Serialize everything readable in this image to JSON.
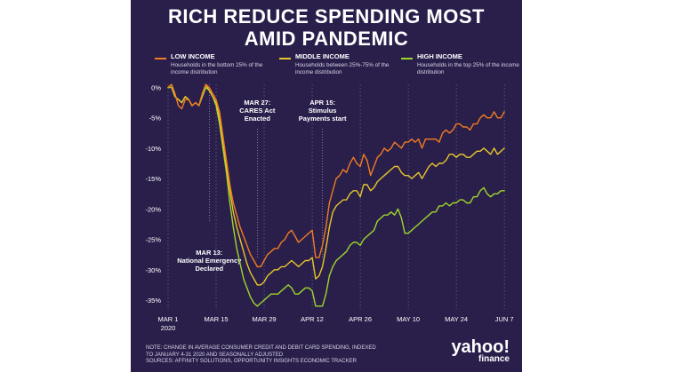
{
  "title_line1": "RICH REDUCE SPENDING MOST",
  "title_line2": "AMID PANDEMIC",
  "legend": [
    {
      "label": "LOW INCOME",
      "desc": "Households in the bottom 25% of the income distribution",
      "color": "#f07b22"
    },
    {
      "label": "MIDDLE INCOME",
      "desc": "Households between 25%-75% of the income distribution",
      "color": "#e6c62a"
    },
    {
      "label": "HIGH INCOME",
      "desc": "Households in the top 25% of the income distribution",
      "color": "#9ed62a"
    }
  ],
  "footnote": {
    "line1": "NOTE: CHANGE IN AVERAGE CONSUMER CREDIT AND DEBIT CARD SPENDING, INDEXED",
    "line2": "TO JANUARY 4-31 2020 AND SEASONALLY ADJUSTED",
    "line3": "SOURCES: AFFINITY SOLUTIONS, OPPORTUNITY INSIGHTS ECONOMIC TRACKER"
  },
  "logo": {
    "main": "yahoo!",
    "sub": "finance"
  },
  "chart_data": {
    "type": "line",
    "x_ticks": [
      {
        "day": 0,
        "label": "MAR 1",
        "sublabel": "2020"
      },
      {
        "day": 14,
        "label": "MAR 15"
      },
      {
        "day": 28,
        "label": "MAR 29"
      },
      {
        "day": 42,
        "label": "APR 12"
      },
      {
        "day": 56,
        "label": "APR 26"
      },
      {
        "day": 70,
        "label": "MAY 10"
      },
      {
        "day": 84,
        "label": "MAY 24"
      },
      {
        "day": 98,
        "label": "JUN 7"
      }
    ],
    "y_ticks": [
      0,
      -5,
      -10,
      -15,
      -20,
      -25,
      -30,
      -35
    ],
    "y_tick_labels": [
      "0%",
      "-5%",
      "-10%",
      "-15%",
      "-20%",
      "-25%",
      "-30%",
      "-35%"
    ],
    "ylim": [
      -37,
      1
    ],
    "xlim": [
      0,
      99
    ],
    "grid": "vertical dotted lines at x ticks",
    "annotations": [
      {
        "day": 12,
        "lines": [
          "MAR 13:",
          "National Emergency",
          "Declared"
        ]
      },
      {
        "day": 26,
        "lines": [
          "MAR 27:",
          "CARES Act",
          "Enacted"
        ]
      },
      {
        "day": 45,
        "lines": [
          "APR 15:",
          "Stimulus",
          "Payments start"
        ]
      }
    ],
    "series": [
      {
        "name": "LOW INCOME",
        "color": "#f07b22",
        "values": [
          0,
          0.5,
          -1,
          -3,
          -3.5,
          -2,
          -2,
          -3,
          -2.5,
          -3,
          -1,
          0.5,
          0,
          -1,
          -2,
          -4,
          -8,
          -12,
          -16,
          -19,
          -21,
          -23,
          -24.5,
          -26,
          -27.5,
          -28.5,
          -29.5,
          -29.5,
          -28.5,
          -27.5,
          -27,
          -26.5,
          -26.5,
          -25.5,
          -25,
          -24,
          -23.5,
          -24.5,
          -25.5,
          -25,
          -24.5,
          -24,
          -23.5,
          -28,
          -28,
          -26,
          -23,
          -19,
          -17,
          -15,
          -14.5,
          -13.5,
          -14,
          -12.5,
          -11.5,
          -12.5,
          -13,
          -11,
          -12,
          -14.5,
          -13,
          -11.5,
          -11,
          -10,
          -10.5,
          -10,
          -9,
          -9.5,
          -10,
          -9,
          -9,
          -8.5,
          -9,
          -8.5,
          -10,
          -8.5,
          -8.5,
          -8.5,
          -8.5,
          -9,
          -7.5,
          -7,
          -7.5,
          -7,
          -6,
          -6,
          -6.5,
          -6.5,
          -7,
          -6,
          -6,
          -5,
          -4.5,
          -5,
          -5,
          -4,
          -5,
          -5,
          -4
        ],
        "_unused": null
      },
      {
        "name": "MIDDLE INCOME",
        "color": "#e6c62a",
        "values": [
          0,
          0.5,
          -1.5,
          -2,
          -2.5,
          -1.5,
          -2,
          -3,
          -2.5,
          -3,
          -1,
          0.5,
          -0.5,
          -1.5,
          -2.5,
          -5,
          -9,
          -13,
          -17,
          -20.5,
          -23,
          -25,
          -27,
          -29,
          -30.5,
          -31.5,
          -32.5,
          -32.5,
          -32,
          -31,
          -30.5,
          -30,
          -30,
          -29.5,
          -29.5,
          -29,
          -28.5,
          -29,
          -29.5,
          -29,
          -28.5,
          -28.5,
          -28,
          -31.5,
          -31,
          -29.5,
          -26.5,
          -23,
          -20.5,
          -19.5,
          -19,
          -18.5,
          -18.5,
          -17.5,
          -17,
          -17,
          -18,
          -16,
          -16,
          -17,
          -16.5,
          -15.5,
          -15,
          -14.5,
          -14,
          -13.5,
          -13,
          -13,
          -14,
          -14.5,
          -14.5,
          -15,
          -14.5,
          -14,
          -15,
          -14,
          -13,
          -12.5,
          -13,
          -12.5,
          -12.5,
          -12,
          -11,
          -11,
          -11.5,
          -11,
          -11,
          -11.5,
          -11.5,
          -11,
          -10.5,
          -10.5,
          -10,
          -10.5,
          -11,
          -10,
          -11,
          -10.5,
          -10
        ],
        "_unused": null
      },
      {
        "name": "HIGH INCOME",
        "color": "#9ed62a",
        "values": [
          0,
          0,
          -1.5,
          -2,
          -2.5,
          -1.5,
          -2,
          -3,
          -2.5,
          -3,
          -1.5,
          0,
          -0.5,
          -1.5,
          -3,
          -6,
          -10,
          -14,
          -19,
          -23,
          -26.5,
          -29,
          -31.5,
          -33,
          -34.5,
          -35.5,
          -36,
          -35.5,
          -35,
          -34.5,
          -34,
          -34,
          -34,
          -33.5,
          -33,
          -32.5,
          -33,
          -34,
          -34,
          -33.5,
          -33,
          -33,
          -33.5,
          -36,
          -36,
          -36,
          -34,
          -31,
          -29.5,
          -28.5,
          -28,
          -27.5,
          -27,
          -26,
          -25.5,
          -25.5,
          -26,
          -25,
          -24.5,
          -24,
          -23.5,
          -22,
          -21.5,
          -21,
          -21,
          -20.5,
          -21,
          -20,
          -21.5,
          -24,
          -24,
          -23.5,
          -23,
          -22.5,
          -22,
          -21.5,
          -21,
          -20.5,
          -20.5,
          -19.5,
          -19.5,
          -19,
          -19.5,
          -19,
          -19,
          -18.5,
          -18.5,
          -19,
          -19,
          -18,
          -18,
          -17,
          -16.5,
          -17.5,
          -18,
          -17.5,
          -17.5,
          -17,
          -17
        ],
        "_unused": null
      }
    ]
  }
}
